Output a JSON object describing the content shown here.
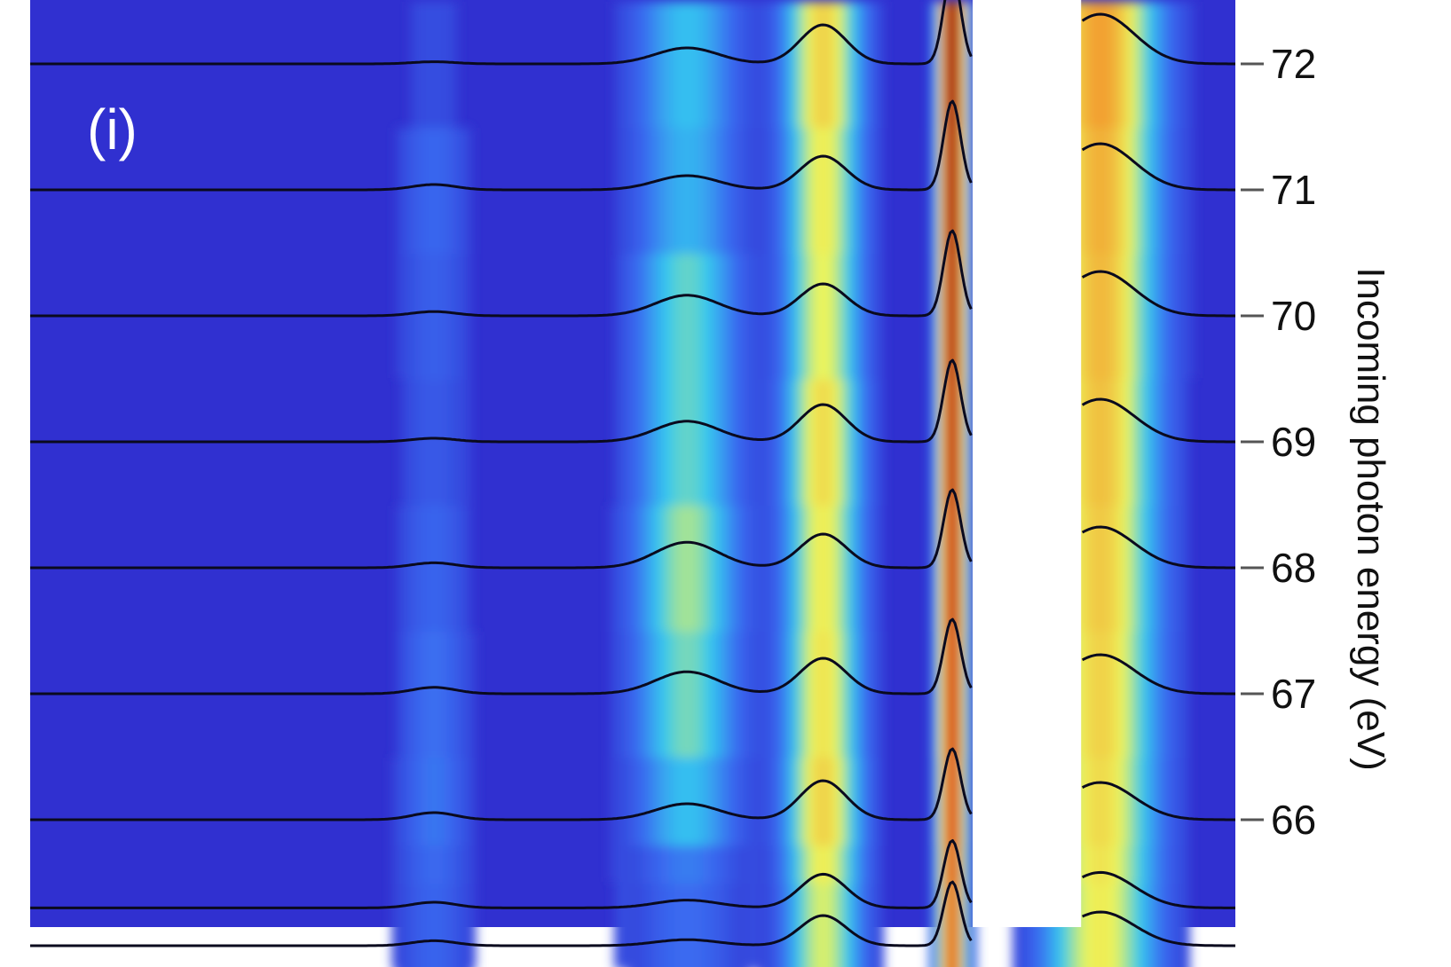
{
  "chart_data": {
    "type": "area",
    "panel_label": "(i)",
    "colors": {
      "background": "#3030d0",
      "trace_line": "#0a0a1e",
      "colormap": [
        "#3030d0",
        "#3a6af0",
        "#35c8f0",
        "#eef55a",
        "#f2a030",
        "#d83a20",
        "#8a2010"
      ]
    },
    "y_axis": {
      "label": "Incoming photon energy (eV)",
      "position": "right",
      "range": [
        65,
        72.4
      ],
      "tick_values": [
        72,
        71,
        70,
        69,
        68,
        67,
        66
      ],
      "ticks": [
        {
          "value": 72,
          "label": "72"
        },
        {
          "value": 71,
          "label": "71"
        },
        {
          "value": 70,
          "label": "70"
        },
        {
          "value": 69,
          "label": "69"
        },
        {
          "value": 68,
          "label": "68"
        },
        {
          "value": 67,
          "label": "67"
        },
        {
          "value": 66,
          "label": "66"
        }
      ]
    },
    "x_axis": {
      "range": [
        0,
        1
      ],
      "labels_visible": false
    },
    "features": {
      "centers": [
        0.335,
        0.545,
        0.658,
        0.765,
        0.888
      ],
      "widths": [
        0.018,
        0.026,
        0.019,
        0.007,
        0.028
      ]
    },
    "gap_region": [
      0.782,
      0.872
    ],
    "series": [
      {
        "energy": 72.0,
        "amplitudes": [
          0.06,
          0.45,
          1.1,
          2.6,
          1.4
        ]
      },
      {
        "energy": 71.0,
        "amplitudes": [
          0.15,
          0.4,
          0.95,
          2.5,
          1.3
        ]
      },
      {
        "energy": 70.0,
        "amplitudes": [
          0.12,
          0.58,
          0.9,
          2.4,
          1.25
        ]
      },
      {
        "energy": 69.0,
        "amplitudes": [
          0.1,
          0.58,
          1.05,
          2.3,
          1.2
        ]
      },
      {
        "energy": 68.0,
        "amplitudes": [
          0.14,
          0.72,
          0.95,
          2.2,
          1.15
        ]
      },
      {
        "energy": 67.0,
        "amplitudes": [
          0.18,
          0.62,
          1.0,
          2.1,
          1.1
        ]
      },
      {
        "energy": 66.0,
        "amplitudes": [
          0.2,
          0.45,
          1.1,
          2.0,
          1.05
        ]
      },
      {
        "energy": 65.3,
        "amplitudes": [
          0.16,
          0.22,
          0.95,
          1.9,
          1.0
        ]
      },
      {
        "energy": 65.0,
        "amplitudes": [
          0.14,
          0.17,
          0.85,
          1.8,
          0.95
        ]
      }
    ]
  }
}
